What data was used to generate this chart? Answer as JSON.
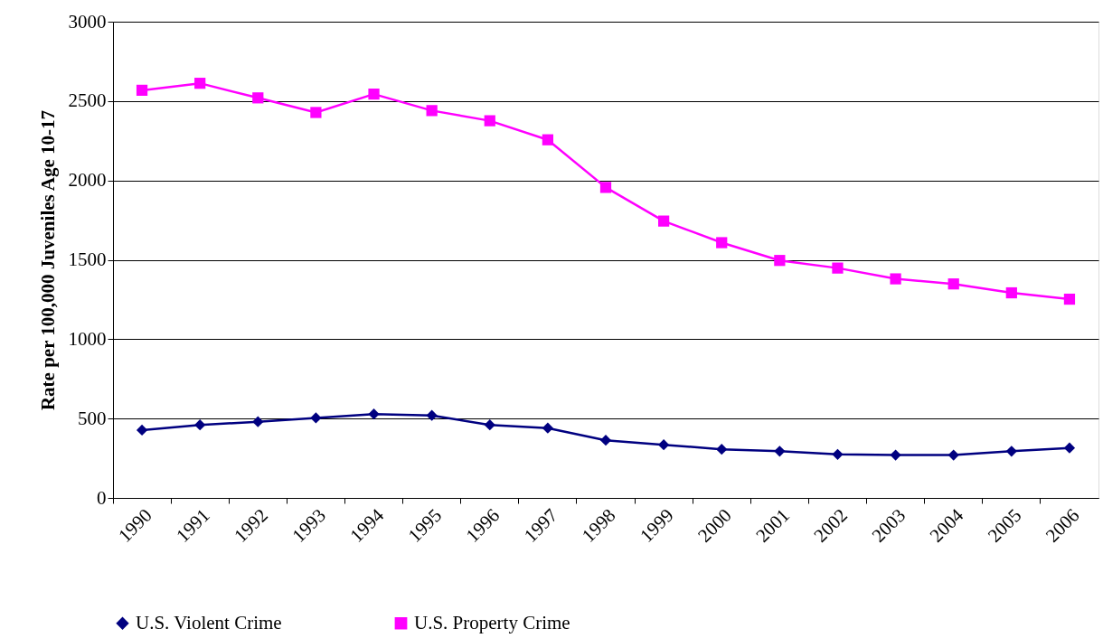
{
  "chart_data": {
    "type": "line",
    "ylabel": "Rate per 100,000 Juveniles Age 10-17",
    "categories": [
      "1990",
      "1991",
      "1992",
      "1993",
      "1994",
      "1995",
      "1996",
      "1997",
      "1998",
      "1999",
      "2000",
      "2001",
      "2002",
      "2003",
      "2004",
      "2005",
      "2006"
    ],
    "series": [
      {
        "name": "U.S. Violent Crime",
        "color": "#000080",
        "marker": "diamond",
        "values": [
          427,
          460,
          480,
          504,
          528,
          520,
          460,
          440,
          363,
          335,
          306,
          294,
          274,
          270,
          270,
          294,
          315
        ]
      },
      {
        "name": "U.S. Property Crime",
        "color": "#ff00ff",
        "marker": "square",
        "values": [
          2568,
          2612,
          2520,
          2428,
          2544,
          2440,
          2376,
          2256,
          1956,
          1744,
          1608,
          1496,
          1448,
          1380,
          1348,
          1292,
          1252
        ]
      }
    ],
    "ylim": [
      0,
      3000
    ],
    "yticks": [
      0,
      500,
      1000,
      1500,
      2000,
      2500,
      3000
    ],
    "grid": "y",
    "legend": "bottom"
  }
}
